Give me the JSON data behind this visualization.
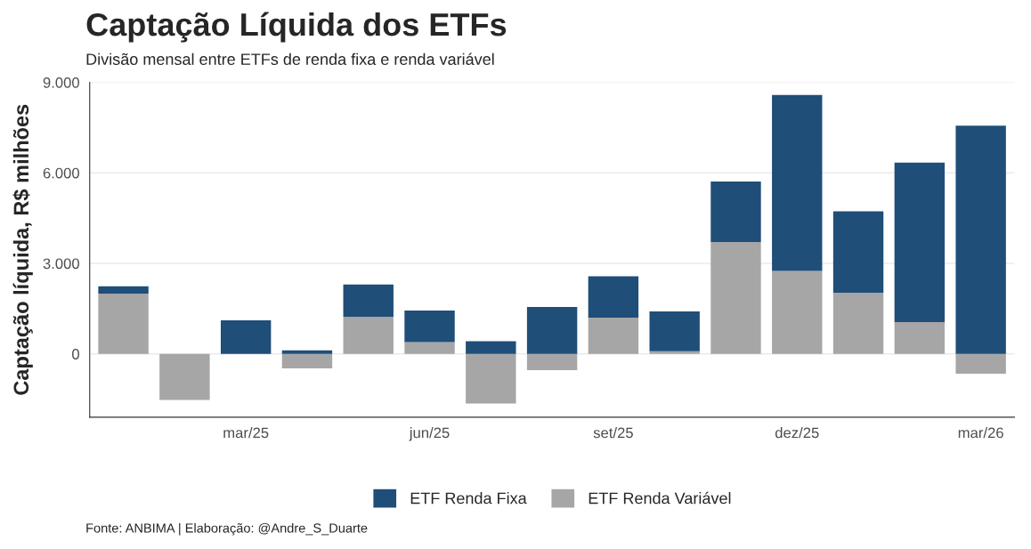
{
  "chart_data": {
    "type": "bar",
    "title": "Captação Líquida dos ETFs",
    "subtitle": "Divisão mensal entre ETFs de renda fixa e renda variável",
    "ylabel": "Captação líquida, R$ milhões",
    "categories": [
      null,
      null,
      "mar/25",
      null,
      null,
      "jun/25",
      null,
      null,
      "set/25",
      null,
      null,
      "dez/25",
      null,
      null,
      "mar/26"
    ],
    "stacked": true,
    "series": [
      {
        "name": "ETF Renda Variável",
        "color": "#a6a6a6",
        "values": [
          2000,
          -1525,
          0,
          -480,
          1230,
          390,
          -1645,
          -540,
          1200,
          90,
          3710,
          2750,
          2030,
          1050,
          -660
        ]
      },
      {
        "name": "ETF Renda Fixa",
        "color": "#1f4e79",
        "values": [
          240,
          0,
          1110,
          120,
          1070,
          1045,
          420,
          1555,
          1370,
          1315,
          2000,
          5830,
          2695,
          5290,
          7565
        ]
      }
    ],
    "ylim": [
      -2100,
      9000
    ],
    "yticks": [
      {
        "value": 0,
        "label": "0"
      },
      {
        "value": 3000,
        "label": "3.000"
      },
      {
        "value": 6000,
        "label": "6.000"
      },
      {
        "value": 9000,
        "label": "9.000"
      }
    ],
    "grid": "y",
    "legend": "bottom",
    "annotations": [
      "Fonte: ANBIMA | Elaboração: @Andre_S_Duarte"
    ]
  }
}
